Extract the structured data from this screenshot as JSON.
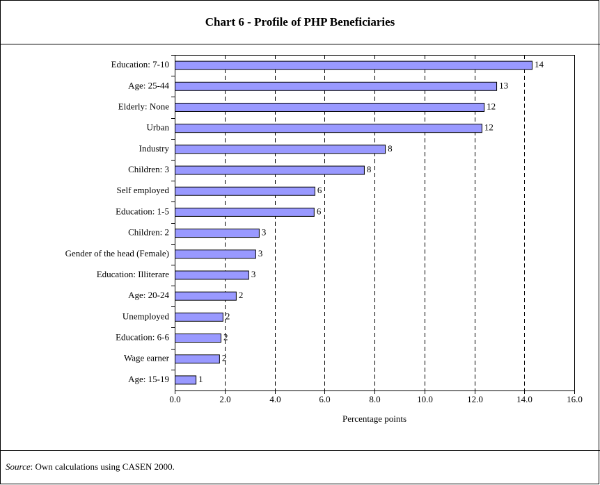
{
  "chart_data": {
    "type": "hbar",
    "title": "Chart 6 - Profile of PHP Beneficiaries",
    "categories": [
      "Education: 7-10",
      "Age: 25-44",
      "Elderly: None",
      "Urban",
      "Industry",
      "Children: 3",
      "Self employed",
      "Education: 1-5",
      "Children: 2",
      "Gender of the head (Female)",
      "Education: Illiterare",
      "Age: 20-24",
      "Unemployed",
      "Education: 6-6",
      "Wage earner",
      "Age: 15-19"
    ],
    "values": [
      14.3,
      12.88,
      12.38,
      12.29,
      8.42,
      7.58,
      5.6,
      5.57,
      3.37,
      3.23,
      2.95,
      2.45,
      1.92,
      1.84,
      1.78,
      0.84
    ],
    "value_labels": [
      "14",
      "13",
      "12",
      "12",
      "8",
      "8",
      "6",
      "6",
      "3",
      "3",
      "3",
      "2",
      "2",
      "2",
      "2",
      "1"
    ],
    "color": "#9999ff",
    "xlim": [
      0,
      16
    ],
    "xticks": [
      {
        "value": 0,
        "label": "0.0"
      },
      {
        "value": 2,
        "label": "2.0"
      },
      {
        "value": 4,
        "label": "4.0"
      },
      {
        "value": 6,
        "label": "6.0"
      },
      {
        "value": 8,
        "label": "8.0"
      },
      {
        "value": 10,
        "label": "10.0"
      },
      {
        "value": 12,
        "label": "12.0"
      },
      {
        "value": 14,
        "label": "14.0"
      },
      {
        "value": 16,
        "label": "16.0"
      }
    ],
    "xlabel": "Percentage points",
    "grid": true,
    "source_label": "Source",
    "source_text": ": Own calculations using CASEN 2000."
  }
}
